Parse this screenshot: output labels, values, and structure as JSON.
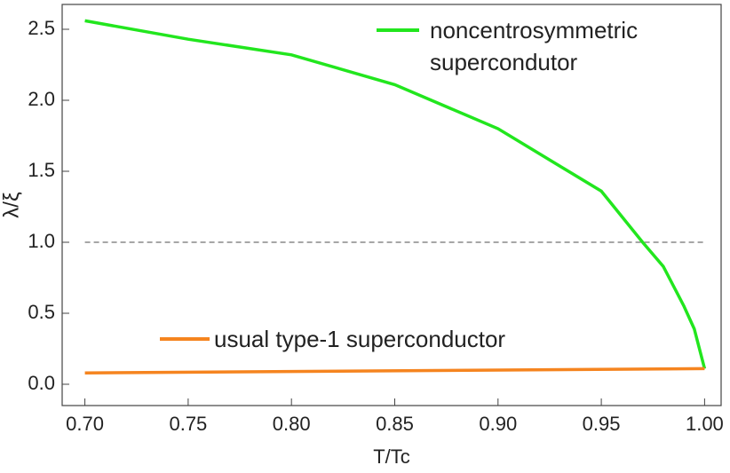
{
  "chart_data": {
    "type": "line",
    "xlabel": "T/Tc",
    "ylabel": "λ/ξ",
    "xlim": [
      0.689,
      1.008
    ],
    "ylim": [
      -0.15,
      2.675
    ],
    "xticks": [
      {
        "value": 0.7,
        "label": "0.70"
      },
      0.75,
      {
        "value": 0.8,
        "label": "0.80"
      },
      0.85,
      {
        "value": 0.9,
        "label": "0.90"
      },
      0.95,
      {
        "value": 1.0,
        "label": "1.00"
      }
    ],
    "yticks": [
      {
        "value": 0,
        "label": "0.0"
      },
      0.5,
      {
        "value": 1,
        "label": "1.0"
      },
      1.5,
      {
        "value": 2,
        "label": "2.0"
      },
      2.5
    ],
    "hline": 1,
    "series": [
      {
        "name": "noncentrosymmetric supercondutor",
        "color": "#22e61e",
        "x": [
          0.7,
          0.75,
          0.8,
          0.85,
          0.9,
          0.95,
          0.97,
          0.98,
          0.99,
          0.995,
          1.0
        ],
        "values": [
          2.56,
          2.43,
          2.32,
          2.11,
          1.8,
          1.36,
          1.0,
          0.83,
          0.55,
          0.39,
          0.11
        ]
      },
      {
        "name": "usual type-1 superconductor",
        "color": "#f5841f",
        "x": [
          0.7,
          1.0
        ],
        "values": [
          0.08,
          0.11
        ]
      }
    ]
  }
}
